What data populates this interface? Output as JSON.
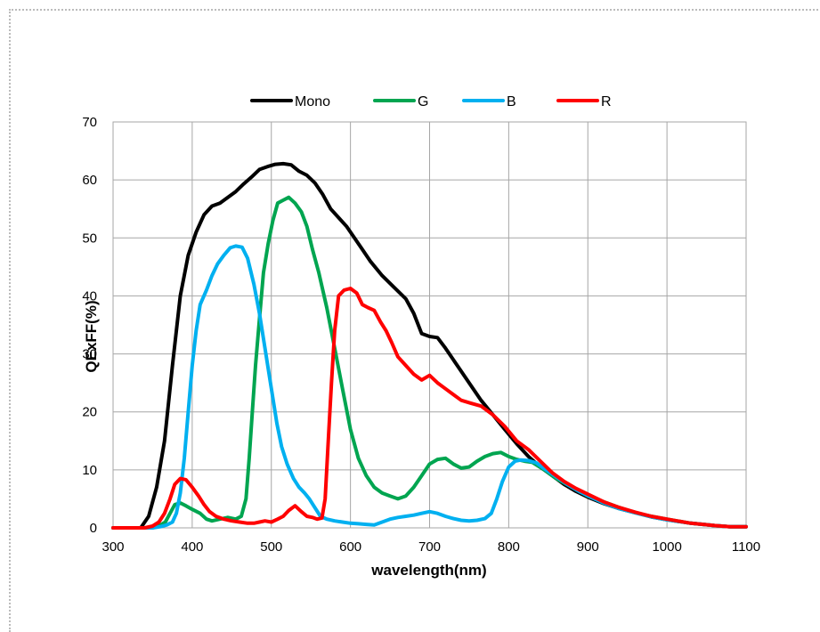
{
  "chart_data": {
    "type": "line",
    "title": "",
    "xlabel": "wavelength(nm)",
    "ylabel": "QExFF(%)",
    "xlim": [
      300,
      1100
    ],
    "ylim": [
      0,
      70
    ],
    "xticks": [
      "300",
      "400",
      "500",
      "600",
      "700",
      "800",
      "900",
      "1000",
      "1100"
    ],
    "yticks": [
      "0",
      "10",
      "20",
      "30",
      "40",
      "50",
      "60",
      "70"
    ],
    "grid": true,
    "legend_position": "top",
    "series": [
      {
        "name": "Mono",
        "color": "#000000",
        "points": [
          [
            300,
            0
          ],
          [
            335,
            0
          ],
          [
            345,
            2
          ],
          [
            355,
            7
          ],
          [
            365,
            15
          ],
          [
            375,
            28
          ],
          [
            385,
            40
          ],
          [
            395,
            47
          ],
          [
            405,
            51
          ],
          [
            415,
            54
          ],
          [
            425,
            55.5
          ],
          [
            435,
            56
          ],
          [
            445,
            57
          ],
          [
            455,
            58
          ],
          [
            465,
            59.3
          ],
          [
            475,
            60.5
          ],
          [
            485,
            61.8
          ],
          [
            495,
            62.3
          ],
          [
            505,
            62.7
          ],
          [
            515,
            62.8
          ],
          [
            525,
            62.6
          ],
          [
            535,
            61.5
          ],
          [
            545,
            60.8
          ],
          [
            555,
            59.5
          ],
          [
            565,
            57.5
          ],
          [
            575,
            55
          ],
          [
            585,
            53.5
          ],
          [
            595,
            52
          ],
          [
            605,
            50
          ],
          [
            615,
            48
          ],
          [
            625,
            46
          ],
          [
            640,
            43.5
          ],
          [
            655,
            41.5
          ],
          [
            670,
            39.5
          ],
          [
            680,
            37
          ],
          [
            690,
            33.5
          ],
          [
            700,
            33
          ],
          [
            710,
            32.8
          ],
          [
            720,
            31
          ],
          [
            735,
            28
          ],
          [
            750,
            25
          ],
          [
            765,
            22
          ],
          [
            780,
            19.5
          ],
          [
            795,
            17
          ],
          [
            810,
            14.5
          ],
          [
            825,
            12.3
          ],
          [
            840,
            10.5
          ],
          [
            855,
            9
          ],
          [
            870,
            7.5
          ],
          [
            885,
            6.3
          ],
          [
            900,
            5.3
          ],
          [
            920,
            4.2
          ],
          [
            940,
            3.3
          ],
          [
            960,
            2.6
          ],
          [
            980,
            1.9
          ],
          [
            1000,
            1.4
          ],
          [
            1030,
            0.8
          ],
          [
            1060,
            0.4
          ],
          [
            1080,
            0.2
          ],
          [
            1100,
            0.2
          ]
        ]
      },
      {
        "name": "G",
        "color": "#00a550",
        "points": [
          [
            300,
            0
          ],
          [
            350,
            0
          ],
          [
            358,
            0.3
          ],
          [
            366,
            1
          ],
          [
            372,
            2.5
          ],
          [
            378,
            4
          ],
          [
            385,
            4.3
          ],
          [
            392,
            3.8
          ],
          [
            400,
            3.2
          ],
          [
            410,
            2.5
          ],
          [
            418,
            1.5
          ],
          [
            425,
            1.2
          ],
          [
            435,
            1.5
          ],
          [
            445,
            1.8
          ],
          [
            455,
            1.5
          ],
          [
            462,
            2
          ],
          [
            468,
            5
          ],
          [
            472,
            12
          ],
          [
            476,
            20
          ],
          [
            480,
            28
          ],
          [
            485,
            36
          ],
          [
            490,
            44
          ],
          [
            496,
            49
          ],
          [
            502,
            53
          ],
          [
            508,
            56
          ],
          [
            515,
            56.5
          ],
          [
            522,
            57
          ],
          [
            530,
            56
          ],
          [
            538,
            54.5
          ],
          [
            545,
            52
          ],
          [
            552,
            48
          ],
          [
            560,
            44
          ],
          [
            570,
            38
          ],
          [
            580,
            31
          ],
          [
            590,
            24
          ],
          [
            600,
            17
          ],
          [
            610,
            12
          ],
          [
            620,
            9
          ],
          [
            630,
            7
          ],
          [
            640,
            6
          ],
          [
            650,
            5.5
          ],
          [
            660,
            5
          ],
          [
            670,
            5.5
          ],
          [
            680,
            7
          ],
          [
            690,
            9
          ],
          [
            700,
            11
          ],
          [
            710,
            11.8
          ],
          [
            720,
            12
          ],
          [
            730,
            11
          ],
          [
            740,
            10.3
          ],
          [
            750,
            10.5
          ],
          [
            760,
            11.5
          ],
          [
            770,
            12.3
          ],
          [
            780,
            12.8
          ],
          [
            790,
            13
          ],
          [
            800,
            12.3
          ],
          [
            810,
            11.8
          ],
          [
            820,
            11.5
          ],
          [
            830,
            11.3
          ],
          [
            845,
            10
          ],
          [
            860,
            8.5
          ],
          [
            880,
            7
          ],
          [
            900,
            5.5
          ],
          [
            920,
            4.5
          ],
          [
            940,
            3.5
          ],
          [
            960,
            2.6
          ],
          [
            980,
            2
          ],
          [
            1000,
            1.5
          ],
          [
            1030,
            0.8
          ],
          [
            1060,
            0.4
          ],
          [
            1080,
            0.2
          ],
          [
            1100,
            0.2
          ]
        ]
      },
      {
        "name": "B",
        "color": "#00b0f0",
        "points": [
          [
            300,
            0
          ],
          [
            350,
            0
          ],
          [
            360,
            0.2
          ],
          [
            368,
            0.5
          ],
          [
            375,
            1
          ],
          [
            380,
            2.5
          ],
          [
            385,
            6
          ],
          [
            390,
            12
          ],
          [
            395,
            20
          ],
          [
            400,
            28
          ],
          [
            405,
            34
          ],
          [
            410,
            38.5
          ],
          [
            418,
            41
          ],
          [
            425,
            43.5
          ],
          [
            432,
            45.5
          ],
          [
            440,
            47
          ],
          [
            448,
            48.3
          ],
          [
            455,
            48.6
          ],
          [
            463,
            48.4
          ],
          [
            470,
            46.5
          ],
          [
            478,
            42
          ],
          [
            485,
            37
          ],
          [
            492,
            31
          ],
          [
            500,
            24
          ],
          [
            507,
            18
          ],
          [
            513,
            14
          ],
          [
            520,
            11
          ],
          [
            528,
            8.5
          ],
          [
            535,
            7
          ],
          [
            542,
            6
          ],
          [
            548,
            5
          ],
          [
            555,
            3.5
          ],
          [
            562,
            2
          ],
          [
            570,
            1.5
          ],
          [
            580,
            1.2
          ],
          [
            590,
            1
          ],
          [
            600,
            0.8
          ],
          [
            610,
            0.7
          ],
          [
            620,
            0.6
          ],
          [
            630,
            0.5
          ],
          [
            640,
            1
          ],
          [
            650,
            1.5
          ],
          [
            660,
            1.8
          ],
          [
            670,
            2
          ],
          [
            680,
            2.2
          ],
          [
            690,
            2.5
          ],
          [
            700,
            2.8
          ],
          [
            710,
            2.5
          ],
          [
            720,
            2
          ],
          [
            730,
            1.6
          ],
          [
            740,
            1.3
          ],
          [
            750,
            1.2
          ],
          [
            760,
            1.3
          ],
          [
            770,
            1.6
          ],
          [
            778,
            2.5
          ],
          [
            785,
            5
          ],
          [
            792,
            8
          ],
          [
            800,
            10.5
          ],
          [
            808,
            11.5
          ],
          [
            815,
            11.7
          ],
          [
            825,
            11.6
          ],
          [
            835,
            11.2
          ],
          [
            845,
            10.2
          ],
          [
            860,
            8.8
          ],
          [
            875,
            7.4
          ],
          [
            890,
            6.2
          ],
          [
            905,
            5.2
          ],
          [
            920,
            4.3
          ],
          [
            940,
            3.3
          ],
          [
            960,
            2.6
          ],
          [
            980,
            1.9
          ],
          [
            1000,
            1.4
          ],
          [
            1030,
            0.8
          ],
          [
            1060,
            0.4
          ],
          [
            1080,
            0.2
          ],
          [
            1100,
            0.2
          ]
        ]
      },
      {
        "name": "R",
        "color": "#ff0000",
        "points": [
          [
            300,
            0
          ],
          [
            340,
            0
          ],
          [
            350,
            0.3
          ],
          [
            358,
            1
          ],
          [
            365,
            2.5
          ],
          [
            372,
            5
          ],
          [
            378,
            7.5
          ],
          [
            385,
            8.5
          ],
          [
            392,
            8.3
          ],
          [
            400,
            7
          ],
          [
            408,
            5.5
          ],
          [
            415,
            4
          ],
          [
            422,
            2.8
          ],
          [
            430,
            2
          ],
          [
            440,
            1.5
          ],
          [
            450,
            1.2
          ],
          [
            460,
            1
          ],
          [
            470,
            0.8
          ],
          [
            478,
            0.8
          ],
          [
            485,
            1
          ],
          [
            492,
            1.2
          ],
          [
            500,
            1
          ],
          [
            508,
            1.5
          ],
          [
            515,
            2
          ],
          [
            522,
            3
          ],
          [
            530,
            3.8
          ],
          [
            538,
            2.8
          ],
          [
            545,
            2
          ],
          [
            552,
            1.8
          ],
          [
            558,
            1.5
          ],
          [
            564,
            1.7
          ],
          [
            568,
            5
          ],
          [
            572,
            15
          ],
          [
            576,
            25
          ],
          [
            580,
            34
          ],
          [
            585,
            40
          ],
          [
            592,
            41
          ],
          [
            600,
            41.3
          ],
          [
            608,
            40.5
          ],
          [
            615,
            38.5
          ],
          [
            622,
            38
          ],
          [
            630,
            37.5
          ],
          [
            638,
            35.5
          ],
          [
            645,
            34
          ],
          [
            652,
            32
          ],
          [
            660,
            29.5
          ],
          [
            670,
            28
          ],
          [
            680,
            26.5
          ],
          [
            690,
            25.5
          ],
          [
            700,
            26.3
          ],
          [
            710,
            25
          ],
          [
            720,
            24
          ],
          [
            730,
            23
          ],
          [
            740,
            22
          ],
          [
            752,
            21.5
          ],
          [
            765,
            21
          ],
          [
            780,
            19.5
          ],
          [
            795,
            17.5
          ],
          [
            810,
            15
          ],
          [
            825,
            13.5
          ],
          [
            840,
            11.5
          ],
          [
            855,
            9.5
          ],
          [
            870,
            8
          ],
          [
            885,
            6.8
          ],
          [
            900,
            5.8
          ],
          [
            920,
            4.5
          ],
          [
            940,
            3.5
          ],
          [
            960,
            2.7
          ],
          [
            980,
            2
          ],
          [
            1000,
            1.5
          ],
          [
            1030,
            0.8
          ],
          [
            1060,
            0.4
          ],
          [
            1080,
            0.2
          ],
          [
            1100,
            0.2
          ]
        ]
      }
    ]
  }
}
